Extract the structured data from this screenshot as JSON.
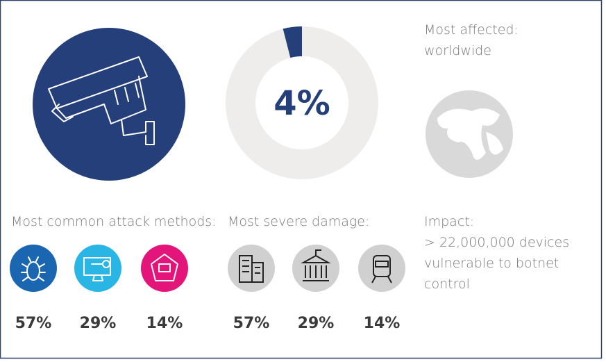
{
  "headline": {
    "value": 4,
    "label": "4%"
  },
  "affected": {
    "title": "Most affected:",
    "text": "worldwide"
  },
  "attack_methods": {
    "title": "Most common attack methods:",
    "items": [
      "57%",
      "29%",
      "14%"
    ]
  },
  "damage": {
    "title": "Most severe damage:",
    "items": [
      "57%",
      "29%",
      "14%"
    ]
  },
  "impact": {
    "title": "Impact:",
    "lines": [
      "> 22,000,000 devices",
      "vulnerable to botnet",
      "control"
    ]
  }
}
